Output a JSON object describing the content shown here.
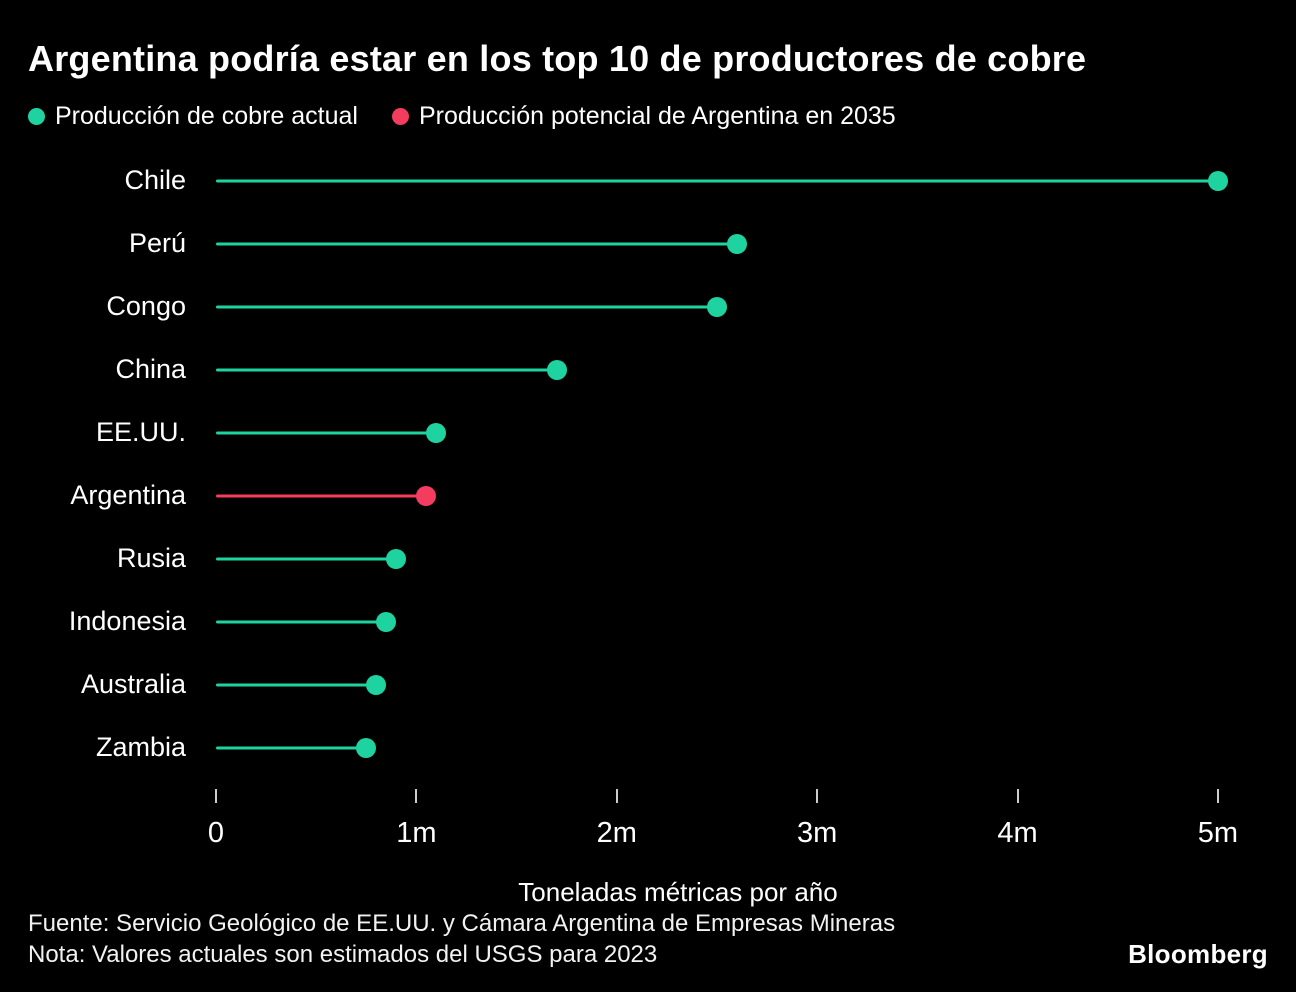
{
  "title": "Argentina podría estar en los top 10 de productores de cobre",
  "legend": [
    {
      "name": "current-production",
      "label": "Producción de cobre actual",
      "color": "#1fd3a0"
    },
    {
      "name": "argentina-potential-2035",
      "label": "Producción potencial de Argentina en 2035",
      "color": "#f43d5e"
    }
  ],
  "chart_data": {
    "type": "bar",
    "subtype": "horizontal-lollipop",
    "categories": [
      "Chile",
      "Perú",
      "Congo",
      "China",
      "EE.UU.",
      "Argentina",
      "Rusia",
      "Indonesia",
      "Australia",
      "Zambia"
    ],
    "values": [
      5.0,
      2.6,
      2.5,
      1.7,
      1.1,
      1.05,
      0.9,
      0.85,
      0.8,
      0.75
    ],
    "unit": "million metric tons per year",
    "highlight_index": 5,
    "highlight_series_name": "Producción potencial de Argentina en 2035",
    "default_series_name": "Producción de cobre actual",
    "xlabel": "Toneladas métricas por año",
    "ylabel": "",
    "xlim": [
      0,
      5.25
    ],
    "xticks": [
      0,
      1,
      2,
      3,
      4,
      5
    ],
    "xtick_labels": [
      "0",
      "1m",
      "2m",
      "3m",
      "4m",
      "5m"
    ],
    "grid": false,
    "legend_position": "top-left"
  },
  "footer": {
    "source": "Fuente: Servicio Geológico de EE.UU. y Cámara Argentina de Empresas Mineras",
    "note": "Nota: Valores actuales son estimados del USGS para 2023",
    "brand": "Bloomberg"
  },
  "colors": {
    "background": "#000000",
    "text": "#ffffff",
    "green": "#1fd3a0",
    "red": "#f43d5e",
    "tick": "#cccccc"
  }
}
